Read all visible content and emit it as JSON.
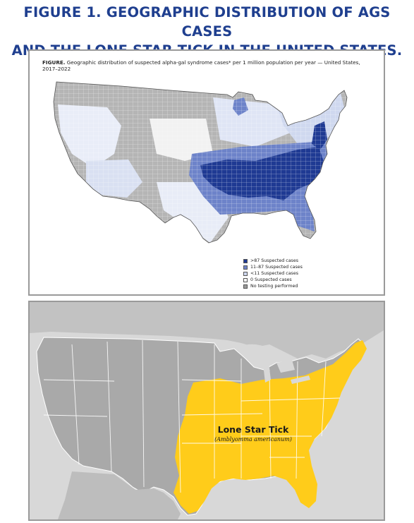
{
  "page": {
    "title_line1": "FIGURE 1. GEOGRAPHIC DISTRIBUTION OF AGS CASES",
    "title_line2": "AND THE LONE STAR TICK IN THE UNITED STATES."
  },
  "figure1": {
    "caption_label": "FIGURE.",
    "caption_text": " Geographic distribution of suspected alpha-gal syndrome cases* per 1 million population per year — United States, 2017–2022",
    "legend": [
      {
        "label": ">87 Suspected cases",
        "color": "#1f3a93"
      },
      {
        "label": "11–87 Suspected cases",
        "color": "#6d83c9"
      },
      {
        "label": "<11 Suspected cases",
        "color": "#cfd8ef"
      },
      {
        "label": "0 Suspected cases",
        "color": "#ffffff"
      },
      {
        "label": "No testing performed",
        "color": "#9a9a9a"
      }
    ]
  },
  "figure2": {
    "range_label": "Lone Star Tick",
    "range_sublabel": "(Amblyomma americanum)",
    "range_color": "#ffcc1a",
    "land_color": "#a9a9a9",
    "water_color": "#d8d8d8"
  }
}
